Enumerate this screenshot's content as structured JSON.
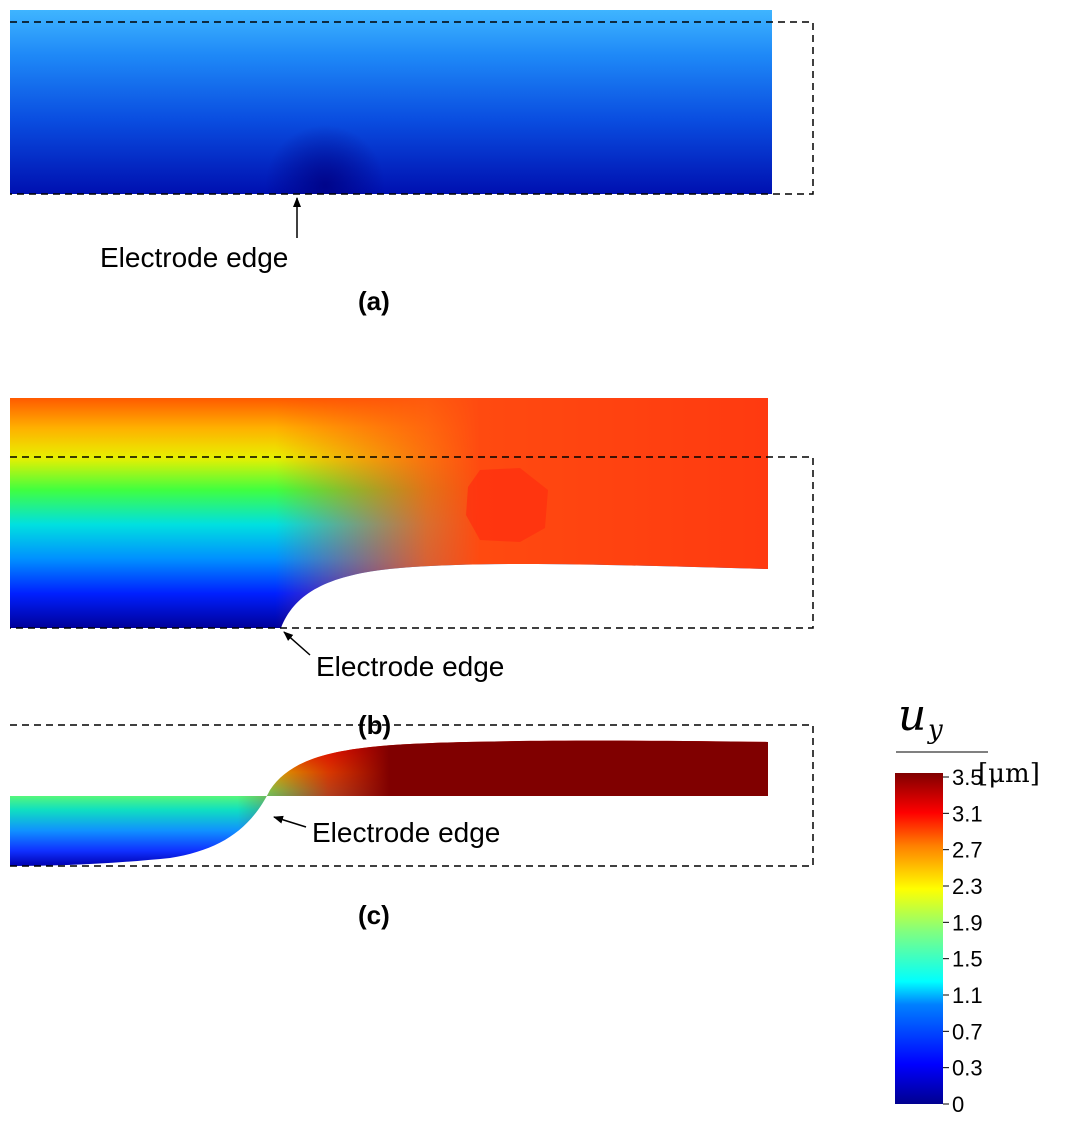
{
  "panels": [
    {
      "label": "(a)",
      "annotation": "Electrode edge"
    },
    {
      "label": "(b)",
      "annotation": "Electrode edge"
    },
    {
      "label": "(c)",
      "annotation": "Electrode edge"
    }
  ],
  "colorbar": {
    "symbol": "u",
    "subscript": "y",
    "unit": "[μm]",
    "ticks": [
      "3.5",
      "3.1",
      "2.7",
      "2.3",
      "1.9",
      "1.5",
      "1.1",
      "0.7",
      "0.3",
      "0"
    ],
    "colormap": [
      "#00008f",
      "#0000ff",
      "#0080ff",
      "#00ffff",
      "#80ff80",
      "#ffff00",
      "#ff8000",
      "#ff0000",
      "#800000"
    ]
  }
}
